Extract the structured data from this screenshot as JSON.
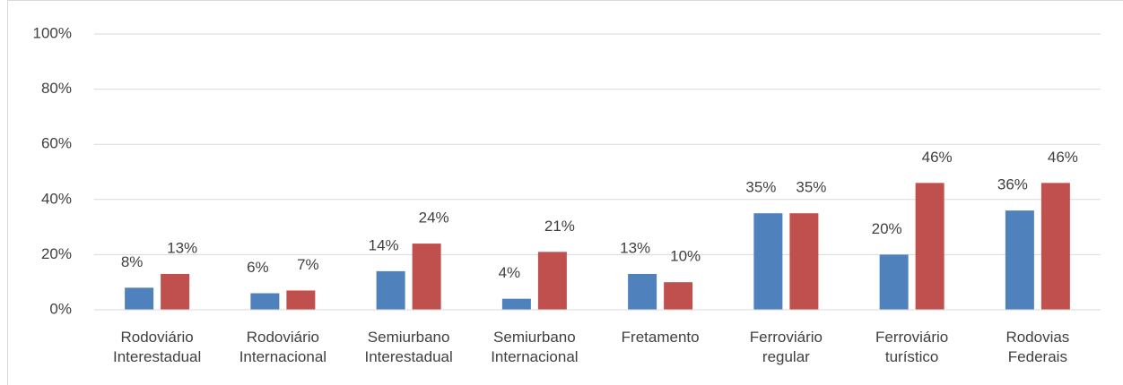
{
  "chart_data": {
    "type": "bar",
    "categories": [
      "Rodoviário\nInterestadual",
      "Rodoviário\nInternacional",
      "Semiurbano\nInterestadual",
      "Semiurbano\nInternacional",
      "Fretamento",
      "Ferroviário\nregular",
      "Ferroviário\nturístico",
      "Rodovias\nFederais"
    ],
    "series": [
      {
        "color": "#4f81bd",
        "values": [
          8,
          6,
          14,
          4,
          13,
          35,
          20,
          36
        ],
        "value_labels": [
          "8%",
          "6%",
          "14%",
          "4%",
          "13%",
          "35%",
          "20%",
          "36%"
        ]
      },
      {
        "color": "#c0504d",
        "values": [
          13,
          7,
          24,
          21,
          10,
          35,
          46,
          46
        ],
        "value_labels": [
          "13%",
          "7%",
          "24%",
          "21%",
          "10%",
          "35%",
          "46%",
          "46%"
        ]
      }
    ],
    "ylim": [
      0,
      100
    ],
    "yticks": [
      {
        "value": 0,
        "label": "0%"
      },
      {
        "value": 20,
        "label": "20%"
      },
      {
        "value": 40,
        "label": "40%"
      },
      {
        "value": 60,
        "label": "60%"
      },
      {
        "value": 80,
        "label": "80%"
      },
      {
        "value": 100,
        "label": "100%"
      }
    ],
    "grid": true
  }
}
